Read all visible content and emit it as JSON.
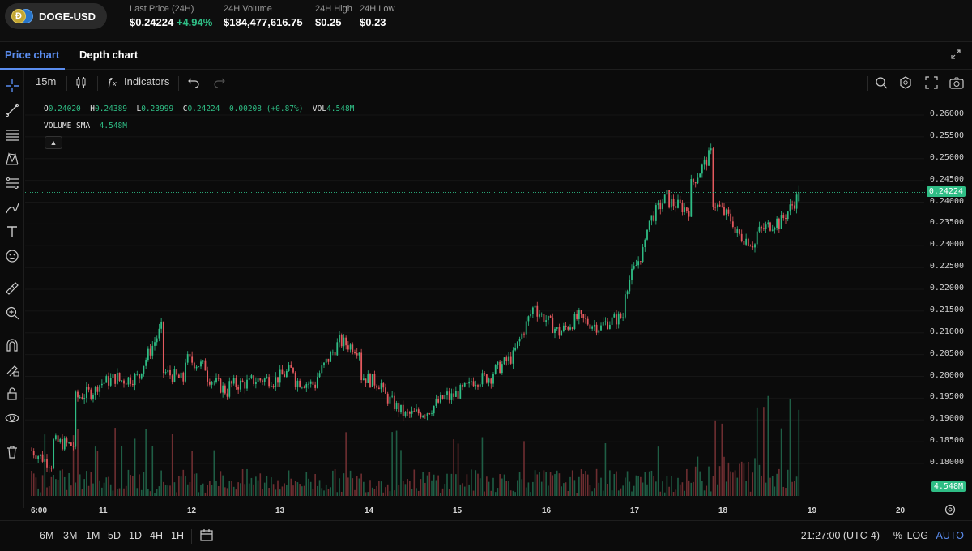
{
  "header": {
    "pair": "DOGE-USD",
    "coin_glyph": "Ð",
    "last_price_label": "Last Price (24H)",
    "last_price": "$0.24224",
    "last_change": "+4.94%",
    "volume_label": "24H Volume",
    "volume": "$184,477,616.75",
    "high_label": "24H High",
    "high": "$0.25",
    "low_label": "24H Low",
    "low": "$0.23"
  },
  "tabs": [
    {
      "label": "Price chart",
      "active": true
    },
    {
      "label": "Depth chart",
      "active": false
    }
  ],
  "toolbar": {
    "interval": "15m",
    "indicators_label": "Indicators"
  },
  "legend": {
    "o_key": "O",
    "o": "0.24020",
    "h_key": "H",
    "h": "0.24389",
    "l_key": "L",
    "l": "0.23999",
    "c_key": "C",
    "c": "0.24224",
    "change": "0.00208 (+0.87%)",
    "vol_key": "VOL",
    "vol": "4.548M",
    "sma_label": "VOLUME SMA",
    "sma_value": "4.548M"
  },
  "y_axis_labels": [
    "0.26000",
    "0.25500",
    "0.25000",
    "0.24500",
    "0.24000",
    "0.23500",
    "0.23000",
    "0.22500",
    "0.22000",
    "0.21500",
    "0.21000",
    "0.20500",
    "0.20000",
    "0.19500",
    "0.19000",
    "0.18500",
    "0.18000"
  ],
  "current_price_tag": "0.24224",
  "volume_tag": "4.548M",
  "x_axis_labels": [
    "6:00",
    "11",
    "12",
    "13",
    "14",
    "15",
    "16",
    "17",
    "18",
    "19",
    "20"
  ],
  "footer": {
    "ranges": [
      "6M",
      "3M",
      "1M",
      "5D",
      "1D",
      "4H",
      "1H"
    ],
    "time": "21:27:00 (UTC-4)",
    "percent": "%",
    "log": "LOG",
    "auto": "AUTO"
  },
  "colors": {
    "up": "#2fbd85",
    "down": "#e4595e",
    "accent": "#5b8def"
  },
  "chart_data": {
    "type": "candlestick",
    "interval": "15m",
    "ylim": [
      0.176,
      0.262
    ],
    "x_labels": [
      "6:00",
      "11",
      "12",
      "13",
      "14",
      "15",
      "16",
      "17",
      "18",
      "19",
      "20"
    ],
    "close_path": [
      [
        0.183,
        0.1795
      ],
      [
        0.185,
        0.184
      ],
      [
        0.195,
        0.197
      ],
      [
        0.198,
        0.2
      ],
      [
        0.199,
        0.2
      ],
      [
        0.202,
        0.212
      ],
      [
        0.201,
        0.199
      ],
      [
        0.204,
        0.202
      ],
      [
        0.2,
        0.196
      ],
      [
        0.198,
        0.1985
      ],
      [
        0.199,
        0.1995
      ],
      [
        0.199,
        0.202
      ],
      [
        0.199,
        0.198
      ],
      [
        0.2,
        0.208
      ],
      [
        0.208,
        0.206
      ],
      [
        0.2,
        0.198
      ],
      [
        0.196,
        0.191
      ],
      [
        0.191,
        0.192
      ],
      [
        0.192,
        0.196
      ],
      [
        0.195,
        0.198
      ],
      [
        0.199,
        0.2
      ],
      [
        0.201,
        0.205
      ],
      [
        0.206,
        0.218
      ],
      [
        0.215,
        0.21
      ],
      [
        0.21,
        0.214
      ],
      [
        0.213,
        0.211
      ],
      [
        0.212,
        0.214
      ],
      [
        0.22,
        0.231
      ],
      [
        0.235,
        0.242
      ],
      [
        0.24,
        0.238
      ],
      [
        0.244,
        0.252
      ],
      [
        0.24,
        0.235
      ],
      [
        0.233,
        0.23
      ],
      [
        0.233,
        0.236
      ],
      [
        0.235,
        0.2422
      ]
    ],
    "volume_last": "4.548M"
  }
}
